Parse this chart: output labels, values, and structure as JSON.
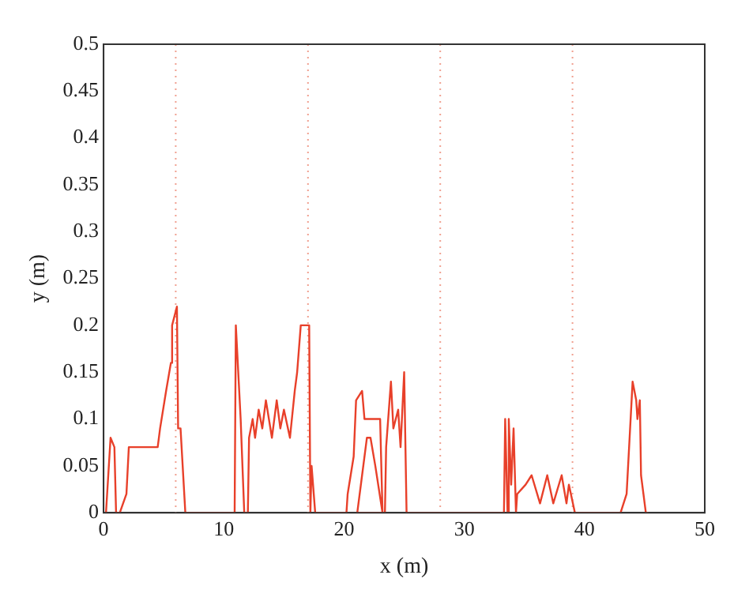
{
  "chart_data": {
    "type": "line",
    "xlabel": "x (m)",
    "ylabel": "y (m)",
    "xlim": [
      0,
      50
    ],
    "ylim": [
      0,
      0.5
    ],
    "xticks": [
      0,
      10,
      20,
      30,
      40,
      50
    ],
    "yticks": [
      0,
      0.05,
      0.1,
      0.15,
      0.2,
      0.25,
      0.3,
      0.35,
      0.4,
      0.45,
      0.5
    ],
    "grid": false,
    "legend": false,
    "marker": "none",
    "line_style": "solid",
    "series": [
      {
        "color": "#e8402a",
        "x": [
          0.2,
          0.58,
          0.9,
          1.04,
          1.35,
          1.9,
          2.1,
          4.5,
          4.7,
          5.2,
          5.6,
          5.7,
          6.1,
          6.2,
          6.4,
          6.8,
          10.9,
          11.0,
          11.4,
          11.7,
          12.0,
          12.1,
          12.4,
          12.6,
          12.9,
          13.2,
          13.5,
          14.0,
          14.4,
          14.7,
          15.0,
          15.5,
          15.9,
          16.1,
          16.4,
          17.1,
          17.2,
          17.3,
          17.6,
          20.2,
          20.3,
          20.8,
          21.0,
          21.5,
          21.7,
          23.0,
          23.2,
          22.6,
          22.2,
          21.9,
          21.5,
          21.1,
          23.4,
          23.5,
          23.9,
          24.1,
          24.5,
          24.7,
          25.0,
          25.2,
          33.3,
          33.4,
          33.6,
          33.7,
          33.9,
          34.1,
          34.3,
          34.4,
          35.1,
          35.6,
          36.3,
          36.9,
          37.4,
          38.1,
          38.5,
          38.7,
          39.2,
          43.0,
          43.5,
          44.0,
          44.3,
          44.4,
          44.6,
          44.7,
          44.9,
          45.1,
          45.3
        ],
        "values": [
          0,
          0.08,
          0.07,
          0,
          0,
          0.02,
          0.07,
          0.07,
          0.09,
          0.13,
          0.16,
          0.2,
          0.22,
          0.09,
          0.09,
          0,
          0,
          0.2,
          0.1,
          0,
          0,
          0.08,
          0.1,
          0.08,
          0.11,
          0.09,
          0.12,
          0.08,
          0.12,
          0.09,
          0.11,
          0.08,
          0.13,
          0.15,
          0.2,
          0.2,
          0,
          0.05,
          0,
          0,
          0.02,
          0.06,
          0.12,
          0.13,
          0.1,
          0.1,
          0,
          0.05,
          0.08,
          0.08,
          0.04,
          0,
          0,
          0.07,
          0.14,
          0.09,
          0.11,
          0.07,
          0.15,
          0,
          0,
          0.1,
          0,
          0.1,
          0.03,
          0.09,
          0,
          0.02,
          0.03,
          0.04,
          0.01,
          0.04,
          0.01,
          0.04,
          0.01,
          0.03,
          0,
          0,
          0.02,
          0.14,
          0.12,
          0.1,
          0.12,
          0.04,
          0.02,
          0,
          0
        ]
      }
    ],
    "ref_lines": [
      {
        "axis": "x",
        "value": 6,
        "color": "#f0a090",
        "line_style": "dotted"
      },
      {
        "axis": "x",
        "value": 17,
        "color": "#f0a090",
        "line_style": "dotted"
      },
      {
        "axis": "x",
        "value": 28,
        "color": "#f0a090",
        "line_style": "dotted"
      },
      {
        "axis": "x",
        "value": 39,
        "color": "#f0a090",
        "line_style": "dotted"
      }
    ]
  }
}
